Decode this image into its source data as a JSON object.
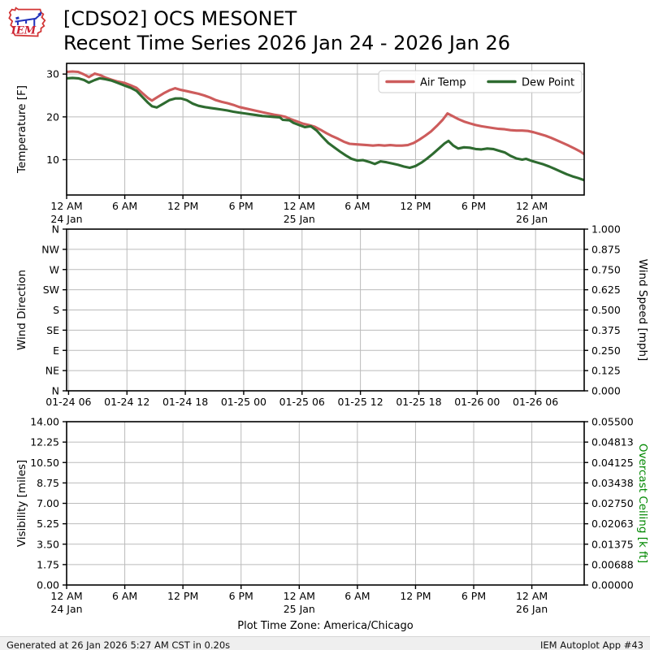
{
  "header": {
    "logo_text": "IEM",
    "title_line1": "[CDSO2] OCS MESONET",
    "title_line2": "Recent Time Series 2026 Jan 24 - 2026 Jan 26"
  },
  "timezone_label": "Plot Time Zone: America/Chicago",
  "footer": {
    "generated": "Generated at 26 Jan 2026 5:27 AM CST in 0.20s",
    "app": "IEM Autoplot App #43"
  },
  "style": {
    "air_temp_color": "#cd5c5c",
    "dew_point_color": "#2e6b30",
    "ceiling_label_color": "#008800",
    "grid_color": "#bbbbbb",
    "spine_color": "#000000",
    "legend_border": "#cccccc",
    "tick_label_color": "#000000"
  },
  "chart_data": [
    {
      "id": "temperature",
      "type": "line",
      "xlim_hours": [
        0,
        53.4
      ],
      "ylim": [
        1.75,
        32.5
      ],
      "ylabel_left": "Temperature [F]",
      "yticks_left": [
        {
          "v": 10,
          "label": "10"
        },
        {
          "v": 20,
          "label": "20"
        },
        {
          "v": 30,
          "label": "30"
        }
      ],
      "xticks": [
        {
          "t": 0,
          "lines": [
            "12 AM",
            "24 Jan"
          ]
        },
        {
          "t": 6,
          "lines": [
            "6 AM"
          ]
        },
        {
          "t": 12,
          "lines": [
            "12 PM"
          ]
        },
        {
          "t": 18,
          "lines": [
            "6 PM"
          ]
        },
        {
          "t": 24,
          "lines": [
            "12 AM",
            "25 Jan"
          ]
        },
        {
          "t": 30,
          "lines": [
            "6 AM"
          ]
        },
        {
          "t": 36,
          "lines": [
            "12 PM"
          ]
        },
        {
          "t": 42,
          "lines": [
            "6 PM"
          ]
        },
        {
          "t": 48,
          "lines": [
            "12 AM",
            "26 Jan"
          ]
        }
      ],
      "legend": {
        "position": "upper right",
        "entries": [
          {
            "label": "Air Temp",
            "color": "#cd5c5c"
          },
          {
            "label": "Dew Point",
            "color": "#2e6b30"
          }
        ]
      },
      "series": [
        {
          "name": "Air Temp",
          "color": "#cd5c5c",
          "points": [
            [
              0,
              30.5
            ],
            [
              0.6,
              30.6
            ],
            [
              1.2,
              30.5
            ],
            [
              1.8,
              29.9
            ],
            [
              2.3,
              29.3
            ],
            [
              2.9,
              30.1
            ],
            [
              3.4,
              29.8
            ],
            [
              4,
              29.2
            ],
            [
              4.6,
              28.7
            ],
            [
              5.2,
              28.3
            ],
            [
              6,
              27.9
            ],
            [
              6.6,
              27.4
            ],
            [
              7.2,
              26.8
            ],
            [
              7.8,
              25.6
            ],
            [
              8.4,
              24.4
            ],
            [
              8.8,
              23.8
            ],
            [
              9.3,
              24.5
            ],
            [
              10,
              25.5
            ],
            [
              10.6,
              26.2
            ],
            [
              11.2,
              26.7
            ],
            [
              11.8,
              26.3
            ],
            [
              12.4,
              26.0
            ],
            [
              13,
              25.7
            ],
            [
              13.6,
              25.4
            ],
            [
              14.2,
              25.0
            ],
            [
              14.8,
              24.5
            ],
            [
              15.4,
              23.9
            ],
            [
              16,
              23.5
            ],
            [
              16.6,
              23.2
            ],
            [
              17.2,
              22.8
            ],
            [
              17.8,
              22.3
            ],
            [
              18.4,
              22.0
            ],
            [
              19,
              21.7
            ],
            [
              19.6,
              21.4
            ],
            [
              20.2,
              21.1
            ],
            [
              20.8,
              20.8
            ],
            [
              21.4,
              20.5
            ],
            [
              22,
              20.3
            ],
            [
              22.6,
              20.0
            ],
            [
              23.2,
              19.4
            ],
            [
              23.8,
              18.9
            ],
            [
              24.4,
              18.4
            ],
            [
              25,
              18.1
            ],
            [
              25.6,
              17.7
            ],
            [
              26.2,
              17.0
            ],
            [
              26.8,
              16.2
            ],
            [
              27.4,
              15.5
            ],
            [
              28,
              14.9
            ],
            [
              28.6,
              14.2
            ],
            [
              29.2,
              13.7
            ],
            [
              29.8,
              13.6
            ],
            [
              30.4,
              13.5
            ],
            [
              31,
              13.4
            ],
            [
              31.6,
              13.3
            ],
            [
              32.2,
              13.4
            ],
            [
              32.8,
              13.3
            ],
            [
              33.4,
              13.4
            ],
            [
              34,
              13.3
            ],
            [
              34.6,
              13.3
            ],
            [
              35.2,
              13.4
            ],
            [
              35.8,
              13.9
            ],
            [
              36.4,
              14.7
            ],
            [
              37,
              15.6
            ],
            [
              37.6,
              16.6
            ],
            [
              38.2,
              17.9
            ],
            [
              38.8,
              19.3
            ],
            [
              39.3,
              20.8
            ],
            [
              39.8,
              20.2
            ],
            [
              40.4,
              19.5
            ],
            [
              41,
              18.9
            ],
            [
              41.6,
              18.5
            ],
            [
              42.2,
              18.1
            ],
            [
              42.8,
              17.8
            ],
            [
              43.4,
              17.6
            ],
            [
              44,
              17.4
            ],
            [
              44.6,
              17.2
            ],
            [
              45.2,
              17.1
            ],
            [
              45.8,
              16.9
            ],
            [
              46.4,
              16.8
            ],
            [
              47,
              16.8
            ],
            [
              47.6,
              16.7
            ],
            [
              48.2,
              16.4
            ],
            [
              48.8,
              16.0
            ],
            [
              49.4,
              15.6
            ],
            [
              50,
              15.1
            ],
            [
              50.6,
              14.5
            ],
            [
              51.2,
              13.9
            ],
            [
              51.8,
              13.3
            ],
            [
              52.4,
              12.6
            ],
            [
              53,
              11.9
            ],
            [
              53.4,
              11.3
            ]
          ]
        },
        {
          "name": "Dew Point",
          "color": "#2e6b30",
          "points": [
            [
              0,
              29.0
            ],
            [
              0.6,
              29.1
            ],
            [
              1.2,
              29.0
            ],
            [
              1.8,
              28.6
            ],
            [
              2.3,
              28.0
            ],
            [
              2.9,
              28.6
            ],
            [
              3.4,
              29.0
            ],
            [
              4,
              28.8
            ],
            [
              4.6,
              28.5
            ],
            [
              5.2,
              28.0
            ],
            [
              6,
              27.3
            ],
            [
              6.6,
              26.8
            ],
            [
              7.2,
              26.1
            ],
            [
              7.8,
              24.7
            ],
            [
              8.4,
              23.3
            ],
            [
              8.8,
              22.5
            ],
            [
              9.3,
              22.2
            ],
            [
              10,
              23.1
            ],
            [
              10.6,
              23.9
            ],
            [
              11.2,
              24.3
            ],
            [
              11.8,
              24.3
            ],
            [
              12.4,
              23.9
            ],
            [
              13,
              23.1
            ],
            [
              13.6,
              22.6
            ],
            [
              14.2,
              22.3
            ],
            [
              14.8,
              22.1
            ],
            [
              15.4,
              21.9
            ],
            [
              16,
              21.7
            ],
            [
              16.6,
              21.5
            ],
            [
              17.2,
              21.2
            ],
            [
              17.8,
              21.0
            ],
            [
              18.4,
              20.8
            ],
            [
              19,
              20.6
            ],
            [
              19.6,
              20.4
            ],
            [
              20.2,
              20.2
            ],
            [
              20.8,
              20.1
            ],
            [
              21.4,
              20.0
            ],
            [
              22,
              19.9
            ],
            [
              22.3,
              19.3
            ],
            [
              23,
              19.2
            ],
            [
              23.4,
              18.6
            ],
            [
              24,
              18.1
            ],
            [
              24.6,
              17.6
            ],
            [
              25.2,
              17.8
            ],
            [
              25.8,
              16.8
            ],
            [
              26.4,
              15.3
            ],
            [
              27,
              13.9
            ],
            [
              27.6,
              12.9
            ],
            [
              28.2,
              11.9
            ],
            [
              28.8,
              11.0
            ],
            [
              29.4,
              10.2
            ],
            [
              30,
              9.8
            ],
            [
              30.6,
              9.9
            ],
            [
              31.2,
              9.5
            ],
            [
              31.8,
              9.0
            ],
            [
              32.4,
              9.6
            ],
            [
              33,
              9.4
            ],
            [
              33.6,
              9.1
            ],
            [
              34.2,
              8.8
            ],
            [
              34.8,
              8.4
            ],
            [
              35.4,
              8.1
            ],
            [
              36,
              8.5
            ],
            [
              36.6,
              9.3
            ],
            [
              37.2,
              10.3
            ],
            [
              37.8,
              11.4
            ],
            [
              38.4,
              12.6
            ],
            [
              39,
              13.8
            ],
            [
              39.4,
              14.4
            ],
            [
              39.9,
              13.3
            ],
            [
              40.4,
              12.6
            ],
            [
              41,
              12.9
            ],
            [
              41.6,
              12.8
            ],
            [
              42.2,
              12.5
            ],
            [
              42.8,
              12.4
            ],
            [
              43.4,
              12.6
            ],
            [
              44,
              12.5
            ],
            [
              44.6,
              12.1
            ],
            [
              45.2,
              11.7
            ],
            [
              45.8,
              10.9
            ],
            [
              46.4,
              10.3
            ],
            [
              47,
              10.0
            ],
            [
              47.4,
              10.2
            ],
            [
              48,
              9.7
            ],
            [
              48.6,
              9.3
            ],
            [
              49.2,
              8.9
            ],
            [
              49.8,
              8.4
            ],
            [
              50.4,
              7.8
            ],
            [
              51,
              7.2
            ],
            [
              51.6,
              6.6
            ],
            [
              52.2,
              6.1
            ],
            [
              52.8,
              5.7
            ],
            [
              53.4,
              5.2
            ]
          ]
        }
      ]
    },
    {
      "id": "wind",
      "type": "line",
      "xlim_hours": [
        5.8,
        59.0
      ],
      "ylabel_left": "Wind Direction",
      "yticks_left": [
        {
          "label": "N"
        },
        {
          "label": "NE"
        },
        {
          "label": "E"
        },
        {
          "label": "SE"
        },
        {
          "label": "S"
        },
        {
          "label": "SW"
        },
        {
          "label": "W"
        },
        {
          "label": "NW"
        },
        {
          "label": "N"
        }
      ],
      "ylabel_right": "Wind Speed [mph]",
      "yticks_right": [
        "0.000",
        "0.125",
        "0.250",
        "0.375",
        "0.500",
        "0.625",
        "0.750",
        "0.875",
        "1.000"
      ],
      "xticks": [
        {
          "t": 6,
          "lines": [
            "01-24 06"
          ]
        },
        {
          "t": 12,
          "lines": [
            "01-24 12"
          ]
        },
        {
          "t": 18,
          "lines": [
            "01-24 18"
          ]
        },
        {
          "t": 24,
          "lines": [
            "01-25 00"
          ]
        },
        {
          "t": 30,
          "lines": [
            "01-25 06"
          ]
        },
        {
          "t": 36,
          "lines": [
            "01-25 12"
          ]
        },
        {
          "t": 42,
          "lines": [
            "01-25 18"
          ]
        },
        {
          "t": 48,
          "lines": [
            "01-26 00"
          ]
        },
        {
          "t": 54,
          "lines": [
            "01-26 06"
          ]
        }
      ],
      "series": []
    },
    {
      "id": "visibility",
      "type": "line",
      "xlim_hours": [
        0,
        53.4
      ],
      "ylabel_left": "Visibility [miles]",
      "yticks_left": [
        {
          "label": "0.00"
        },
        {
          "label": "1.75"
        },
        {
          "label": "3.50"
        },
        {
          "label": "5.25"
        },
        {
          "label": "7.00"
        },
        {
          "label": "8.75"
        },
        {
          "label": "10.50"
        },
        {
          "label": "12.25"
        },
        {
          "label": "14.00"
        }
      ],
      "ylabel_right": "Overcast Ceiling [k ft]",
      "ylabel_right_color": "#008800",
      "yticks_right": [
        "0.00000",
        "0.00688",
        "0.01375",
        "0.02063",
        "0.02750",
        "0.03438",
        "0.04125",
        "0.04813",
        "0.05500"
      ],
      "xticks": [
        {
          "t": 0,
          "lines": [
            "12 AM",
            "24 Jan"
          ]
        },
        {
          "t": 6,
          "lines": [
            "6 AM"
          ]
        },
        {
          "t": 12,
          "lines": [
            "12 PM"
          ]
        },
        {
          "t": 18,
          "lines": [
            "6 PM"
          ]
        },
        {
          "t": 24,
          "lines": [
            "12 AM",
            "25 Jan"
          ]
        },
        {
          "t": 30,
          "lines": [
            "6 AM"
          ]
        },
        {
          "t": 36,
          "lines": [
            "12 PM"
          ]
        },
        {
          "t": 42,
          "lines": [
            "6 PM"
          ]
        },
        {
          "t": 48,
          "lines": [
            "12 AM",
            "26 Jan"
          ]
        }
      ],
      "series": []
    }
  ]
}
